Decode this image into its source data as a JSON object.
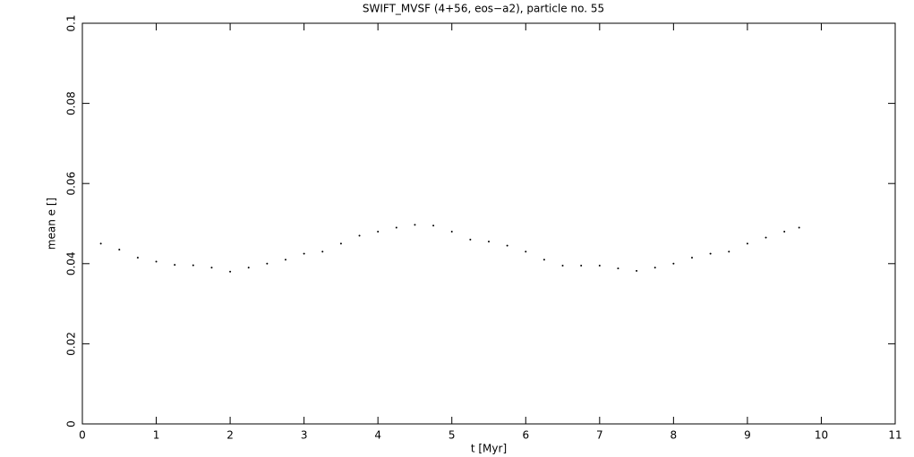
{
  "chart_data": {
    "type": "scatter",
    "title": "SWIFT_MVSF (4+56, eos−a2), particle no. 55",
    "x_label": "t [Myr]",
    "y_label": "mean e []",
    "x": [
      0.25,
      0.5,
      0.75,
      1.0,
      1.25,
      1.5,
      1.75,
      2.0,
      2.25,
      2.5,
      2.75,
      3.0,
      3.25,
      3.5,
      3.75,
      4.0,
      4.25,
      4.5,
      4.75,
      5.0,
      5.25,
      5.5,
      5.75,
      6.0,
      6.25,
      6.5,
      6.75,
      7.0,
      7.25,
      7.5,
      7.75,
      8.0,
      8.25,
      8.5,
      8.75,
      9.0,
      9.25,
      9.5,
      9.7
    ],
    "values": [
      0.045,
      0.0435,
      0.0415,
      0.0405,
      0.0397,
      0.0396,
      0.039,
      0.038,
      0.039,
      0.04,
      0.041,
      0.0425,
      0.043,
      0.045,
      0.047,
      0.048,
      0.049,
      0.0497,
      0.0495,
      0.048,
      0.046,
      0.0455,
      0.0445,
      0.043,
      0.041,
      0.0395,
      0.0395,
      0.0395,
      0.0388,
      0.0382,
      0.039,
      0.04,
      0.0415,
      0.0425,
      0.043,
      0.045,
      0.0465,
      0.048,
      0.049
    ],
    "color": "#000000",
    "xlim": [
      0,
      11
    ],
    "xticks": [
      0,
      1,
      2,
      3,
      4,
      5,
      6,
      7,
      8,
      9,
      10,
      11
    ],
    "ylim": [
      0,
      0.1
    ],
    "yticks": [
      0,
      0.02,
      0.04,
      0.06,
      0.08,
      0.1
    ]
  }
}
